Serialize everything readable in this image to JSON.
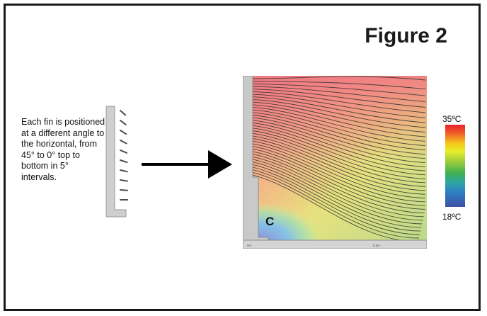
{
  "figure_title": "Figure 2",
  "caption": "Each fin is positioned at a different angle to the horizontal, from 45° to 0°  top to bottom in 5° intervals.",
  "zone_label": "C",
  "color_scale": {
    "max_label": "35ºC",
    "min_label": "18ºC",
    "colors": [
      "#e8242b",
      "#f6c31b",
      "#e8ee2a",
      "#43b24d",
      "#2d7fc4",
      "#3e4fa3"
    ]
  },
  "axis_ticks": [
    "0m",
    "0.5m"
  ],
  "fins": {
    "count": 10,
    "angle_top_deg": 45,
    "angle_bottom_deg": 0,
    "step_deg": 5
  }
}
